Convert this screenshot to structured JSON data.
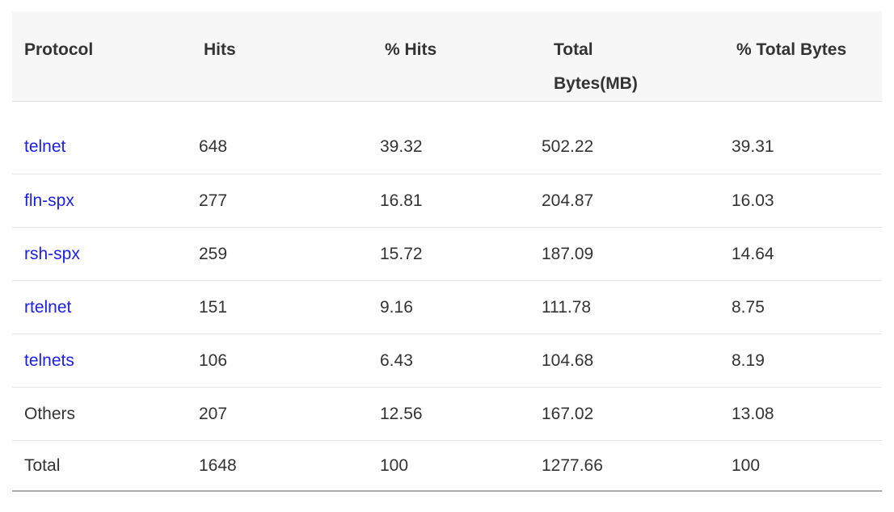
{
  "table": {
    "columns": [
      {
        "label": "Protocol"
      },
      {
        "label": "Hits"
      },
      {
        "label": "% Hits"
      },
      {
        "label": "Total Bytes(MB)"
      },
      {
        "label": "% Total Bytes"
      }
    ],
    "rows": [
      {
        "protocol": "telnet",
        "link": true,
        "hits": "648",
        "pct_hits": "39.32",
        "total_bytes_mb": "502.22",
        "pct_total_bytes": "39.31"
      },
      {
        "protocol": "fln-spx",
        "link": true,
        "hits": "277",
        "pct_hits": "16.81",
        "total_bytes_mb": "204.87",
        "pct_total_bytes": "16.03"
      },
      {
        "protocol": "rsh-spx",
        "link": true,
        "hits": "259",
        "pct_hits": "15.72",
        "total_bytes_mb": "187.09",
        "pct_total_bytes": "14.64"
      },
      {
        "protocol": "rtelnet",
        "link": true,
        "hits": "151",
        "pct_hits": "9.16",
        "total_bytes_mb": "111.78",
        "pct_total_bytes": "8.75"
      },
      {
        "protocol": "telnets",
        "link": true,
        "hits": "106",
        "pct_hits": "6.43",
        "total_bytes_mb": "104.68",
        "pct_total_bytes": "8.19"
      },
      {
        "protocol": "Others",
        "link": false,
        "hits": "207",
        "pct_hits": "12.56",
        "total_bytes_mb": "167.02",
        "pct_total_bytes": "13.08"
      },
      {
        "protocol": "Total",
        "link": false,
        "hits": "1648",
        "pct_hits": "100",
        "total_bytes_mb": "1277.66",
        "pct_total_bytes": "100"
      }
    ]
  },
  "colors": {
    "link_blue": "#1b1ee6",
    "text": "#333333",
    "header_background": "#f7f7f7",
    "row_divider": "#e6e6e6",
    "header_divider": "#dcdcdc",
    "table_bottom_border": "#ababab"
  }
}
